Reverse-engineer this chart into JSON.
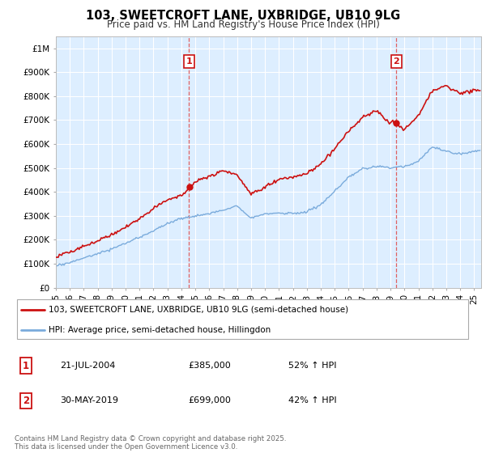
{
  "title": "103, SWEETCROFT LANE, UXBRIDGE, UB10 9LG",
  "subtitle": "Price paid vs. HM Land Registry's House Price Index (HPI)",
  "ylim": [
    0,
    1050000
  ],
  "yticks": [
    0,
    100000,
    200000,
    300000,
    400000,
    500000,
    600000,
    700000,
    800000,
    900000,
    1000000
  ],
  "ytick_labels": [
    "£0",
    "£100K",
    "£200K",
    "£300K",
    "£400K",
    "£500K",
    "£600K",
    "£700K",
    "£800K",
    "£900K",
    "£1M"
  ],
  "hpi_color": "#7aabdc",
  "sale_color": "#cc1111",
  "vline_color": "#e06060",
  "annotation_box_color": "#cc1111",
  "annotation_text_color": "#cc1111",
  "bg_color": "#ddeeff",
  "grid_color": "#ffffff",
  "sale1_date": 2004.55,
  "sale1_price": 385000,
  "sale1_label": "1",
  "sale2_date": 2019.42,
  "sale2_price": 699000,
  "sale2_label": "2",
  "legend_line1": "103, SWEETCROFT LANE, UXBRIDGE, UB10 9LG (semi-detached house)",
  "legend_line2": "HPI: Average price, semi-detached house, Hillingdon",
  "table_row1": [
    "1",
    "21-JUL-2004",
    "£385,000",
    "52% ↑ HPI"
  ],
  "table_row2": [
    "2",
    "30-MAY-2019",
    "£699,000",
    "42% ↑ HPI"
  ],
  "footnote": "Contains HM Land Registry data © Crown copyright and database right 2025.\nThis data is licensed under the Open Government Licence v3.0.",
  "xmin": 1995.0,
  "xmax": 2025.5,
  "xtick_years": [
    1995,
    1996,
    1997,
    1998,
    1999,
    2000,
    2001,
    2002,
    2003,
    2004,
    2005,
    2006,
    2007,
    2008,
    2009,
    2010,
    2011,
    2012,
    2013,
    2014,
    2015,
    2016,
    2017,
    2018,
    2019,
    2020,
    2021,
    2022,
    2023,
    2024,
    2025
  ]
}
